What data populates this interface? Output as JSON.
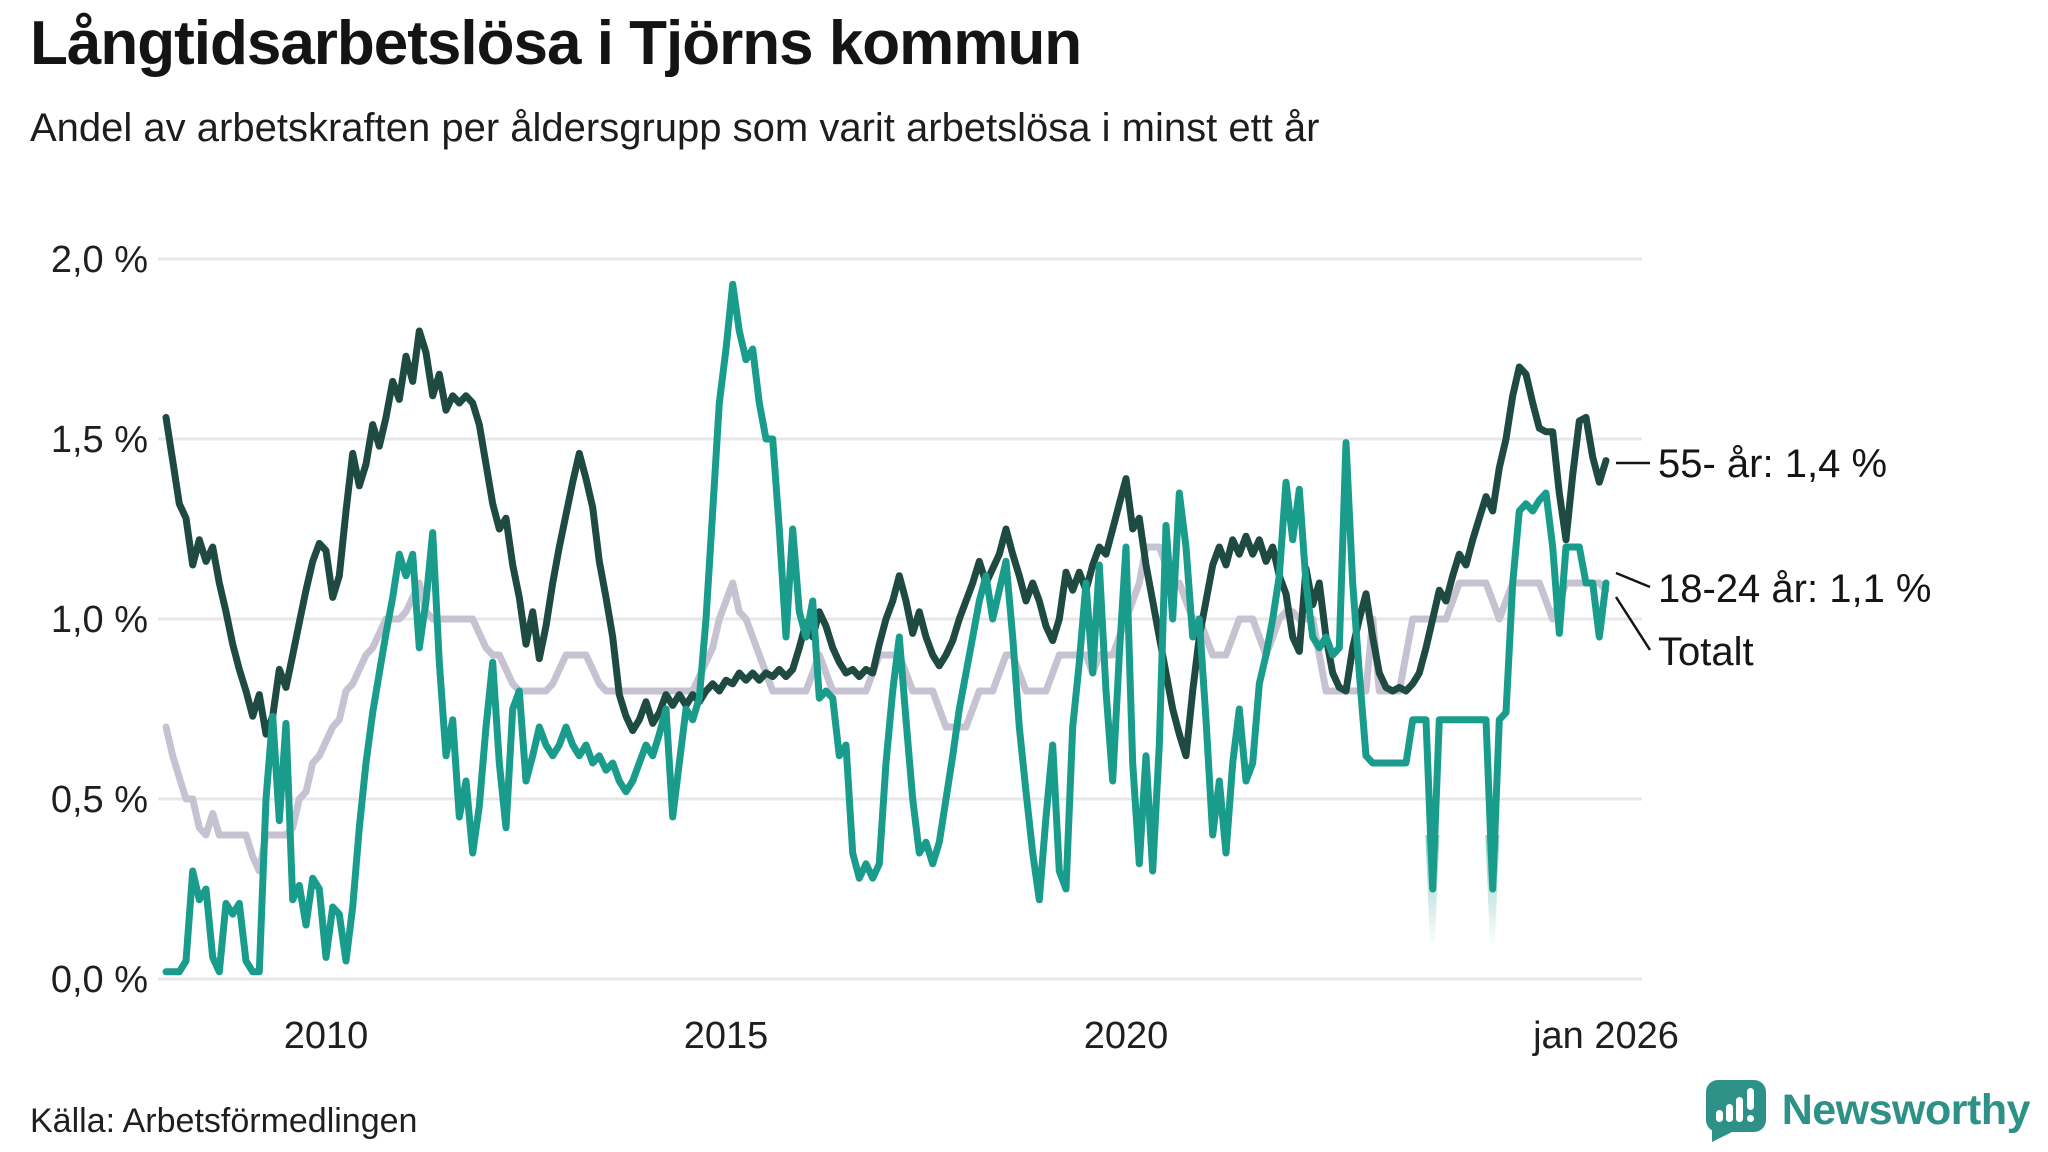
{
  "header": {
    "title": "Långtidsarbetslösa i Tjörns kommun",
    "subtitle": "Andel av arbetskraften per åldersgrupp som varit arbetslösa i minst ett år"
  },
  "footer": {
    "source": "Källa: Arbetsförmedlingen",
    "brand": "Newsworthy"
  },
  "colors": {
    "series_55": "#1e4a42",
    "series_18_24": "#199c8c",
    "series_total": "#c6c2d1",
    "grid": "#e7e6e9",
    "text": "#1f1f1f",
    "annotation_text": "#151515",
    "leader_line": "#151515",
    "brand_teal": "#2e9187"
  },
  "chart_data": {
    "type": "line",
    "title": "Långtidsarbetslösa i Tjörns kommun",
    "subtitle": "Andel av arbetskraften per åldersgrupp som varit arbetslösa i minst ett år",
    "unit": "% av arbetskraften",
    "x_start_year": 2008,
    "points_per_year": 12,
    "xlim": [
      2008,
      2026.08
    ],
    "ylim": [
      0,
      2
    ],
    "grid": true,
    "legend_position": "right-annotations",
    "y_ticks": [
      {
        "value": 0.0,
        "label": "0,0 %"
      },
      {
        "value": 0.5,
        "label": "0,5 %"
      },
      {
        "value": 1.0,
        "label": "1,0 %"
      },
      {
        "value": 1.5,
        "label": "1,5 %"
      },
      {
        "value": 2.0,
        "label": "2,0 %"
      }
    ],
    "x_ticks": [
      {
        "year": 2010,
        "label": "2010"
      },
      {
        "year": 2015,
        "label": "2015"
      },
      {
        "year": 2020,
        "label": "2020"
      },
      {
        "year": 2026,
        "label": "jan 2026"
      }
    ],
    "series": [
      {
        "name": "Totalt",
        "color": "#c6c2d1",
        "end_value": 1.1,
        "values": [
          0.7,
          0.62,
          0.56,
          0.5,
          0.5,
          0.42,
          0.4,
          0.46,
          0.4,
          0.4,
          0.4,
          0.4,
          0.4,
          0.34,
          0.3,
          0.4,
          0.4,
          0.4,
          0.4,
          0.42,
          0.5,
          0.52,
          0.6,
          0.62,
          0.66,
          0.7,
          0.72,
          0.8,
          0.82,
          0.86,
          0.9,
          0.92,
          0.96,
          1.0,
          1.0,
          1.0,
          1.02,
          1.06,
          1.1,
          1.02,
          1.0,
          1.0,
          1.0,
          1.0,
          1.0,
          1.0,
          1.0,
          0.96,
          0.92,
          0.9,
          0.9,
          0.86,
          0.82,
          0.8,
          0.8,
          0.8,
          0.8,
          0.8,
          0.82,
          0.86,
          0.9,
          0.9,
          0.9,
          0.9,
          0.86,
          0.82,
          0.8,
          0.8,
          0.8,
          0.8,
          0.8,
          0.8,
          0.8,
          0.8,
          0.8,
          0.8,
          0.8,
          0.8,
          0.8,
          0.8,
          0.84,
          0.88,
          0.92,
          1.0,
          1.05,
          1.1,
          1.02,
          1.0,
          0.95,
          0.9,
          0.85,
          0.8,
          0.8,
          0.8,
          0.8,
          0.8,
          0.8,
          0.85,
          0.9,
          0.85,
          0.8,
          0.8,
          0.8,
          0.8,
          0.8,
          0.8,
          0.85,
          0.9,
          0.9,
          0.9,
          0.9,
          0.85,
          0.8,
          0.8,
          0.8,
          0.8,
          0.75,
          0.7,
          0.7,
          0.7,
          0.7,
          0.75,
          0.8,
          0.8,
          0.8,
          0.85,
          0.9,
          0.9,
          0.85,
          0.8,
          0.8,
          0.8,
          0.8,
          0.85,
          0.9,
          0.9,
          0.9,
          0.9,
          0.9,
          0.85,
          0.9,
          0.9,
          0.9,
          0.95,
          1.0,
          1.05,
          1.1,
          1.2,
          1.2,
          1.2,
          1.15,
          1.1,
          1.1,
          1.05,
          1.0,
          1.0,
          0.95,
          0.9,
          0.9,
          0.9,
          0.95,
          1.0,
          1.0,
          1.0,
          0.95,
          0.9,
          0.95,
          1.0,
          1.02,
          1.02,
          1.0,
          1.0,
          1.0,
          0.9,
          0.8,
          0.8,
          0.8,
          0.8,
          0.8,
          0.8,
          0.8,
          1.0,
          0.8,
          0.8,
          0.8,
          0.8,
          0.9,
          1.0,
          1.0,
          1.0,
          1.0,
          1.0,
          1.0,
          1.05,
          1.1,
          1.1,
          1.1,
          1.1,
          1.1,
          1.05,
          1.0,
          1.05,
          1.1,
          1.1,
          1.1,
          1.1,
          1.1,
          1.05,
          1.0,
          1.05,
          1.1,
          1.1,
          1.1,
          1.1,
          1.1,
          1.1,
          1.08
        ]
      },
      {
        "name": "55- år",
        "color": "#1e4a42",
        "end_value": 1.4,
        "values": [
          1.56,
          1.44,
          1.32,
          1.28,
          1.15,
          1.22,
          1.16,
          1.2,
          1.1,
          1.02,
          0.93,
          0.86,
          0.8,
          0.73,
          0.79,
          0.68,
          0.73,
          0.86,
          0.81,
          0.9,
          0.99,
          1.08,
          1.16,
          1.21,
          1.19,
          1.06,
          1.12,
          1.3,
          1.46,
          1.37,
          1.43,
          1.54,
          1.48,
          1.56,
          1.66,
          1.61,
          1.73,
          1.66,
          1.8,
          1.74,
          1.62,
          1.68,
          1.58,
          1.62,
          1.6,
          1.62,
          1.6,
          1.54,
          1.43,
          1.32,
          1.25,
          1.28,
          1.15,
          1.06,
          0.93,
          1.02,
          0.89,
          0.98,
          1.1,
          1.2,
          1.29,
          1.38,
          1.46,
          1.39,
          1.31,
          1.16,
          1.06,
          0.95,
          0.79,
          0.73,
          0.69,
          0.72,
          0.77,
          0.71,
          0.74,
          0.79,
          0.76,
          0.79,
          0.76,
          0.79,
          0.77,
          0.8,
          0.82,
          0.8,
          0.83,
          0.82,
          0.85,
          0.83,
          0.85,
          0.83,
          0.85,
          0.84,
          0.86,
          0.84,
          0.86,
          0.92,
          0.99,
          0.95,
          1.02,
          0.98,
          0.92,
          0.88,
          0.85,
          0.86,
          0.84,
          0.86,
          0.85,
          0.93,
          1.0,
          1.05,
          1.12,
          1.05,
          0.96,
          1.02,
          0.95,
          0.9,
          0.87,
          0.9,
          0.94,
          1.0,
          1.05,
          1.1,
          1.16,
          1.1,
          1.14,
          1.18,
          1.25,
          1.18,
          1.12,
          1.05,
          1.1,
          1.05,
          0.98,
          0.94,
          1.0,
          1.13,
          1.08,
          1.13,
          1.08,
          1.15,
          1.2,
          1.18,
          1.25,
          1.32,
          1.39,
          1.25,
          1.28,
          1.15,
          1.05,
          0.95,
          0.85,
          0.75,
          0.68,
          0.62,
          0.8,
          0.95,
          1.05,
          1.15,
          1.2,
          1.15,
          1.22,
          1.18,
          1.23,
          1.18,
          1.22,
          1.16,
          1.2,
          1.12,
          1.07,
          0.95,
          0.91,
          1.14,
          1.04,
          1.1,
          0.95,
          0.85,
          0.81,
          0.8,
          0.92,
          1.0,
          1.07,
          0.95,
          0.85,
          0.81,
          0.8,
          0.81,
          0.8,
          0.82,
          0.85,
          0.92,
          1.0,
          1.08,
          1.05,
          1.12,
          1.18,
          1.15,
          1.22,
          1.28,
          1.34,
          1.3,
          1.42,
          1.5,
          1.62,
          1.7,
          1.68,
          1.6,
          1.53,
          1.52,
          1.52,
          1.35,
          1.22,
          1.4,
          1.55,
          1.56,
          1.45,
          1.38,
          1.44
        ]
      },
      {
        "name": "18-24 år",
        "color": "#199c8c",
        "end_value": 1.1,
        "values": [
          0.02,
          0.02,
          0.02,
          0.05,
          0.3,
          0.22,
          0.25,
          0.06,
          0.02,
          0.21,
          0.18,
          0.21,
          0.05,
          0.02,
          0.02,
          0.5,
          0.73,
          0.44,
          0.71,
          0.22,
          0.26,
          0.15,
          0.28,
          0.25,
          0.06,
          0.2,
          0.18,
          0.05,
          0.2,
          0.42,
          0.6,
          0.74,
          0.85,
          0.96,
          1.06,
          1.18,
          1.12,
          1.18,
          0.92,
          1.05,
          1.24,
          0.88,
          0.62,
          0.72,
          0.45,
          0.55,
          0.35,
          0.48,
          0.7,
          0.88,
          0.6,
          0.42,
          0.75,
          0.8,
          0.55,
          0.62,
          0.7,
          0.65,
          0.62,
          0.65,
          0.7,
          0.65,
          0.62,
          0.65,
          0.6,
          0.62,
          0.58,
          0.6,
          0.55,
          0.52,
          0.55,
          0.6,
          0.65,
          0.62,
          0.68,
          0.75,
          0.45,
          0.6,
          0.75,
          0.72,
          0.78,
          1.0,
          1.3,
          1.6,
          1.75,
          1.93,
          1.8,
          1.72,
          1.75,
          1.6,
          1.5,
          1.5,
          1.25,
          0.95,
          1.25,
          1.02,
          0.95,
          1.05,
          0.78,
          0.8,
          0.78,
          0.62,
          0.65,
          0.35,
          0.28,
          0.32,
          0.28,
          0.32,
          0.6,
          0.8,
          0.95,
          0.72,
          0.5,
          0.35,
          0.38,
          0.32,
          0.38,
          0.5,
          0.62,
          0.75,
          0.85,
          0.95,
          1.05,
          1.12,
          1.0,
          1.08,
          1.16,
          0.95,
          0.7,
          0.52,
          0.35,
          0.22,
          0.45,
          0.65,
          0.3,
          0.25,
          0.7,
          0.88,
          1.1,
          0.85,
          1.15,
          0.8,
          0.55,
          0.9,
          1.2,
          0.6,
          0.32,
          0.62,
          0.3,
          0.65,
          1.26,
          1.0,
          1.35,
          1.2,
          0.95,
          1.0,
          0.72,
          0.4,
          0.55,
          0.35,
          0.6,
          0.75,
          0.55,
          0.6,
          0.82,
          0.9,
          1.0,
          1.12,
          1.38,
          1.22,
          1.36,
          1.1,
          0.95,
          0.92,
          0.95,
          0.9,
          0.92,
          1.49,
          1.1,
          0.85,
          0.62,
          0.6,
          0.6,
          0.6,
          0.6,
          0.6,
          0.6,
          0.72,
          0.72,
          0.72,
          0.25,
          0.72,
          0.72,
          0.72,
          0.72,
          0.72,
          0.72,
          0.72,
          0.72,
          0.25,
          0.72,
          0.74,
          1.1,
          1.3,
          1.32,
          1.3,
          1.33,
          1.35,
          1.2,
          0.96,
          1.2,
          1.2,
          1.2,
          1.1,
          1.1,
          0.95,
          1.1
        ]
      }
    ],
    "fade_markers": [
      {
        "year": 2023.83,
        "from_value": 0.4,
        "to_value": 0.1
      },
      {
        "year": 2024.58,
        "from_value": 0.4,
        "to_value": 0.1
      }
    ],
    "annotations": [
      {
        "label": "55- år: 1,4 %",
        "series": "55- år"
      },
      {
        "label": "18-24 år: 1,1 %",
        "series": "18-24 år"
      },
      {
        "label": "Totalt",
        "series": "Totalt"
      }
    ]
  }
}
